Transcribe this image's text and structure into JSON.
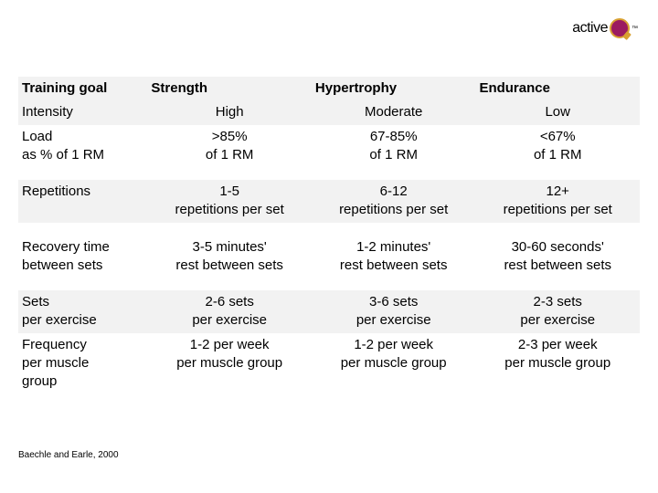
{
  "logo": {
    "brand_text": "active",
    "tm": "™",
    "brand_color": "#9b1b60",
    "accent_color": "#d8a030"
  },
  "table": {
    "shaded_bg": "#f2f2f2",
    "font_size": 15,
    "text_color": "#000000",
    "columns": [
      "Training goal",
      "Strength",
      "Hypertrophy",
      "Endurance"
    ],
    "rows": [
      {
        "label": "Intensity",
        "values": [
          "High",
          "Moderate",
          "Low"
        ],
        "shaded": true,
        "header_continuation": true
      },
      {
        "label": "Load\nas % of 1 RM",
        "values": [
          ">85%\nof 1 RM",
          "67-85%\nof 1 RM",
          "<67%\nof 1 RM"
        ],
        "shaded": false
      },
      {
        "spacer": true
      },
      {
        "label": "Repetitions",
        "values": [
          "1-5\nrepetitions per set",
          "6-12\nrepetitions per set",
          "12+\nrepetitions per set"
        ],
        "shaded": true
      },
      {
        "spacer": true
      },
      {
        "label": "Recovery time\nbetween sets",
        "values": [
          "3-5 minutes'\nrest between sets",
          "1-2 minutes'\nrest between sets",
          "30-60 seconds'\nrest between sets"
        ],
        "shaded": false
      },
      {
        "spacer": true
      },
      {
        "label": "Sets\nper exercise",
        "values": [
          "2-6 sets\nper exercise",
          "3-6 sets\nper exercise",
          "2-3 sets\nper exercise"
        ],
        "shaded": true
      },
      {
        "label": "Frequency\nper muscle\ngroup",
        "values": [
          "1-2 per week\nper muscle group",
          "1-2 per week\nper muscle group",
          "2-3 per week\nper muscle group"
        ],
        "shaded": false
      }
    ]
  },
  "citation": "Baechle and Earle, 2000"
}
